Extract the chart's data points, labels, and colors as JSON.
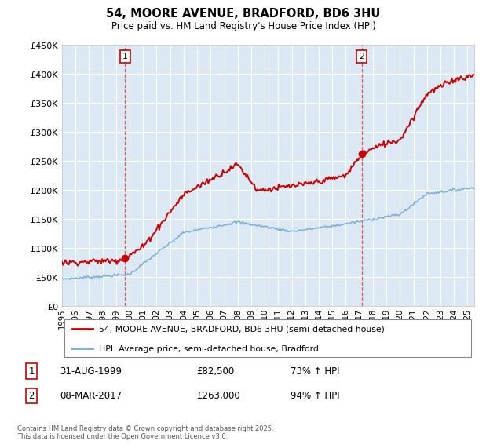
{
  "title1": "54, MOORE AVENUE, BRADFORD, BD6 3HU",
  "title2": "Price paid vs. HM Land Registry's House Price Index (HPI)",
  "background_color": "#dce9f5",
  "red_color": "#cc0000",
  "blue_color": "#7aafd4",
  "ylim": [
    0,
    450000
  ],
  "yticks": [
    0,
    50000,
    100000,
    150000,
    200000,
    250000,
    300000,
    350000,
    400000,
    450000
  ],
  "ytick_labels": [
    "£0",
    "£50K",
    "£100K",
    "£150K",
    "£200K",
    "£250K",
    "£300K",
    "£350K",
    "£400K",
    "£450K"
  ],
  "sale1_date": 1999.66,
  "sale1_price": 82500,
  "sale2_date": 2017.18,
  "sale2_price": 263000,
  "legend_line1": "54, MOORE AVENUE, BRADFORD, BD6 3HU (semi-detached house)",
  "legend_line2": "HPI: Average price, semi-detached house, Bradford",
  "footer": "Contains HM Land Registry data © Crown copyright and database right 2025.\nThis data is licensed under the Open Government Licence v3.0.",
  "xmin": 1995,
  "xmax": 2025.5
}
